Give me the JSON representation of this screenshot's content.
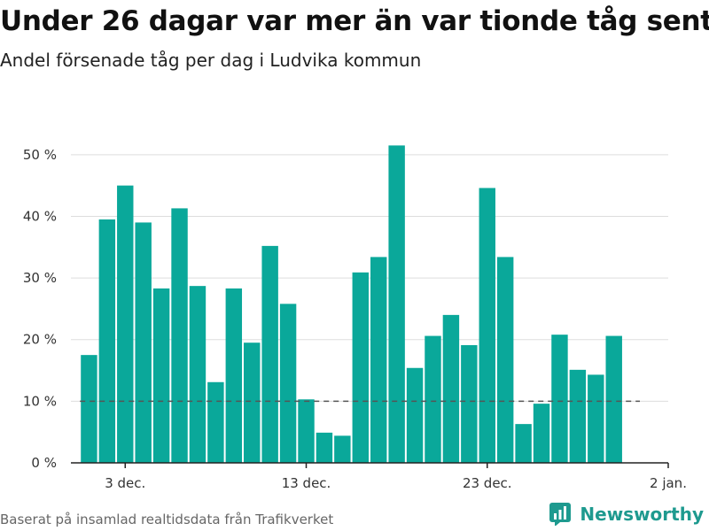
{
  "title": "Under 26 dagar var mer än var tionde tåg sent",
  "subtitle": "Andel försenade tåg per dag i Ludvika kommun",
  "footer": "Baserat på insamlad realtidsdata från Trafikverket",
  "brand": {
    "name": "Newsworthy",
    "icon": "newsworthy-logo-icon",
    "color": "#1e9a8f"
  },
  "chart_data": {
    "type": "bar",
    "title": "Under 26 dagar var mer än var tionde tåg sent",
    "subtitle": "Andel försenade tåg per dag i Ludvika kommun",
    "xlabel": "",
    "ylabel": "",
    "y_unit": "%",
    "ylim": [
      0,
      55
    ],
    "y_ticks": [
      0,
      10,
      20,
      30,
      40,
      50
    ],
    "y_tick_labels": [
      "0 %",
      "10 %",
      "20 %",
      "30 %",
      "40 %",
      "50 %"
    ],
    "x_range": [
      "2023-11-30",
      "2024-01-02"
    ],
    "x_ticks": [
      "2023-12-03",
      "2023-12-13",
      "2023-12-23",
      "2024-01-02"
    ],
    "x_tick_labels": [
      "3 dec.",
      "13 dec.",
      "23 dec.",
      "2 jan."
    ],
    "dates": [
      "2023-12-01",
      "2023-12-02",
      "2023-12-03",
      "2023-12-04",
      "2023-12-05",
      "2023-12-06",
      "2023-12-07",
      "2023-12-08",
      "2023-12-09",
      "2023-12-10",
      "2023-12-11",
      "2023-12-12",
      "2023-12-13",
      "2023-12-14",
      "2023-12-15",
      "2023-12-16",
      "2023-12-17",
      "2023-12-18",
      "2023-12-19",
      "2023-12-20",
      "2023-12-21",
      "2023-12-22",
      "2023-12-23",
      "2023-12-24",
      "2023-12-25",
      "2023-12-26",
      "2023-12-27",
      "2023-12-28",
      "2023-12-29",
      "2023-12-30"
    ],
    "values": [
      17.5,
      39.5,
      45,
      39,
      28.3,
      41.3,
      28.7,
      13.1,
      28.3,
      19.5,
      35.2,
      25.8,
      10.3,
      4.9,
      4.4,
      30.9,
      33.4,
      51.5,
      15.4,
      20.6,
      24,
      19.1,
      44.6,
      33.4,
      6.3,
      9.6,
      20.8,
      15.1,
      14.3,
      20.6
    ],
    "reference_line": {
      "value": 10,
      "style": "dashed",
      "color": "#555555"
    },
    "bar_color": "#0aa89a",
    "grid": true,
    "legend": "none"
  }
}
